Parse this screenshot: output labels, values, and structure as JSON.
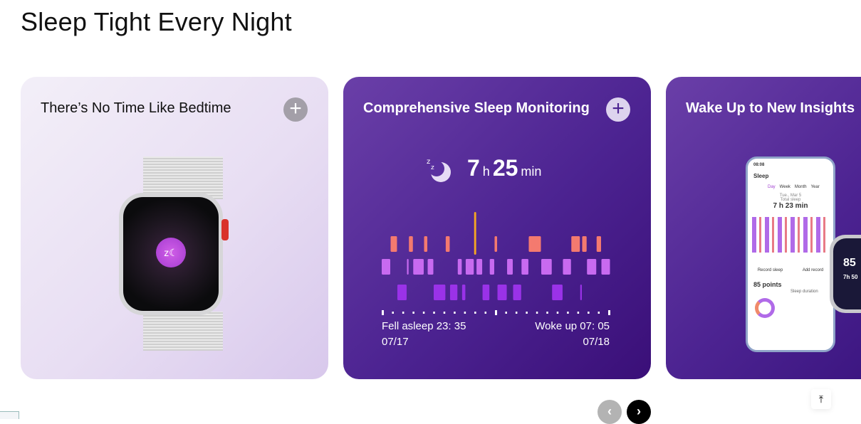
{
  "section_title": "Sleep Tight Every Night",
  "cards": [
    {
      "title": "There’s No Time Like Bedtime",
      "expand_icon": "plus-icon"
    },
    {
      "title": "Comprehensive Sleep Monitoring",
      "expand_icon": "plus-icon",
      "sleep": {
        "hours": "7",
        "hours_unit": "h",
        "minutes": "25",
        "minutes_unit": "min",
        "fell_asleep": "Fell asleep 23: 35",
        "fell_asleep_date": "07/17",
        "woke_up": "Woke up 07: 05",
        "woke_up_date": "07/18",
        "stage_colors": {
          "awake": "#f5a623",
          "rem": "#f47a6f",
          "light": "#c86af0",
          "deep": "#9a32e8"
        },
        "stages": [
          [
            "light",
            37
          ],
          [
            "rem",
            28
          ],
          [
            "deep",
            40
          ],
          [
            "light",
            8
          ],
          [
            "rem",
            18
          ],
          [
            "light",
            45
          ],
          [
            "rem",
            15
          ],
          [
            "light",
            25
          ],
          [
            "deep",
            50
          ],
          [
            "rem",
            18
          ],
          [
            "deep",
            32
          ],
          [
            "light",
            18
          ],
          [
            "deep",
            15
          ],
          [
            "light",
            35
          ],
          [
            "awake",
            10
          ],
          [
            "light",
            25
          ],
          [
            "deep",
            30
          ],
          [
            "light",
            20
          ],
          [
            "rem",
            12
          ],
          [
            "deep",
            40
          ],
          [
            "light",
            25
          ],
          [
            "deep",
            35
          ],
          [
            "light",
            30
          ],
          [
            "rem",
            52
          ],
          [
            "light",
            45
          ],
          [
            "deep",
            45
          ],
          [
            "light",
            35
          ],
          [
            "rem",
            37
          ],
          [
            "deep",
            8
          ],
          [
            "rem",
            20
          ],
          [
            "light",
            40
          ],
          [
            "rem",
            20
          ],
          [
            "light",
            37
          ]
        ]
      }
    },
    {
      "title": "Wake Up to New Insights",
      "phone": {
        "time": "08:08",
        "title": "Sleep",
        "tabs": [
          "Day",
          "Week",
          "Month",
          "Year"
        ],
        "date": "Tue., Mar 5",
        "total_label": "Total sleep",
        "total": "7 h 23 min",
        "record_sleep": "Record sleep",
        "add_record": "Add record",
        "score": "85 points",
        "duration_label": "Sleep duration"
      },
      "watch": {
        "score": "85",
        "duration": "7h 50"
      }
    }
  ],
  "nav": {
    "prev_icon": "chevron-left-icon",
    "next_icon": "chevron-right-icon",
    "back_to_top_icon": "arrow-up-to-top-icon"
  },
  "colors": {
    "card_purple": "#4c2391",
    "next_button": "#000000",
    "prev_button": "#b3b3b3"
  }
}
